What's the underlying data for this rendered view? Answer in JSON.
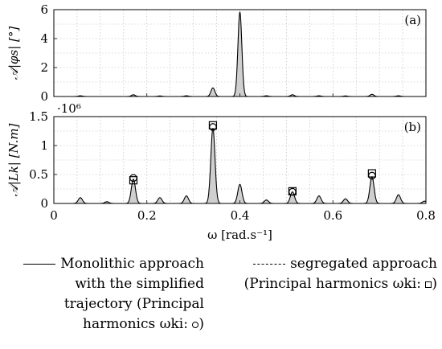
{
  "chart_data": [
    {
      "type": "line",
      "panel_label": "(a)",
      "ylabel": "𝒜|φs| [°]",
      "ylim": [
        0,
        6
      ],
      "yticks": [
        "0",
        "2",
        "4",
        "6"
      ],
      "xlim": [
        0,
        0.8
      ],
      "grid": true,
      "series": [
        {
          "peaks": [
            [
              0.057,
              0.05
            ],
            [
              0.171,
              0.12
            ],
            [
              0.228,
              0.04
            ],
            [
              0.285,
              0.05
            ],
            [
              0.342,
              0.6
            ],
            [
              0.4,
              5.85
            ],
            [
              0.457,
              0.05
            ],
            [
              0.513,
              0.12
            ],
            [
              0.57,
              0.05
            ],
            [
              0.627,
              0.04
            ],
            [
              0.684,
              0.15
            ],
            [
              0.741,
              0.05
            ]
          ]
        }
      ]
    },
    {
      "type": "line",
      "panel_label": "(b)",
      "ylabel": "𝒜|Lk| [N.m]",
      "scale_label": "·10⁶",
      "ylim": [
        0,
        1.5
      ],
      "yticks": [
        "0",
        "0.5",
        "1",
        "1.5"
      ],
      "xlim": [
        0,
        0.8
      ],
      "xticks": [
        "0",
        "0.2",
        "0.4",
        "0.6",
        "0.8"
      ],
      "xlabel": "ω [rad.s⁻¹]",
      "grid": true,
      "series": [
        {
          "name": "Monolithic approach with the simplified trajectory (Principal harmonics ωki: ∘)",
          "peaks": [
            [
              0.057,
              0.1
            ],
            [
              0.114,
              0.03
            ],
            [
              0.171,
              0.42
            ],
            [
              0.228,
              0.1
            ],
            [
              0.285,
              0.13
            ],
            [
              0.342,
              1.3
            ],
            [
              0.4,
              0.33
            ],
            [
              0.457,
              0.06
            ],
            [
              0.513,
              0.2
            ],
            [
              0.57,
              0.13
            ],
            [
              0.627,
              0.08
            ],
            [
              0.684,
              0.46
            ],
            [
              0.741,
              0.15
            ],
            [
              0.797,
              0.04
            ]
          ],
          "markers": [
            [
              0.171,
              0.44
            ],
            [
              0.342,
              1.32
            ],
            [
              0.513,
              0.2
            ],
            [
              0.684,
              0.48
            ]
          ]
        },
        {
          "name": "segregated approach (Principal harmonics ωki: ▫)",
          "markers": [
            [
              0.171,
              0.4
            ],
            [
              0.342,
              1.35
            ],
            [
              0.513,
              0.21
            ],
            [
              0.684,
              0.52
            ]
          ]
        }
      ]
    }
  ],
  "legend": {
    "solid_lines": [
      "Monolithic approach",
      "with the simplified",
      "trajectory (Principal",
      "harmonics ωki: "
    ],
    "dashed_lines": [
      "segregated approach",
      "(Principal harmonics ωki: "
    ]
  }
}
